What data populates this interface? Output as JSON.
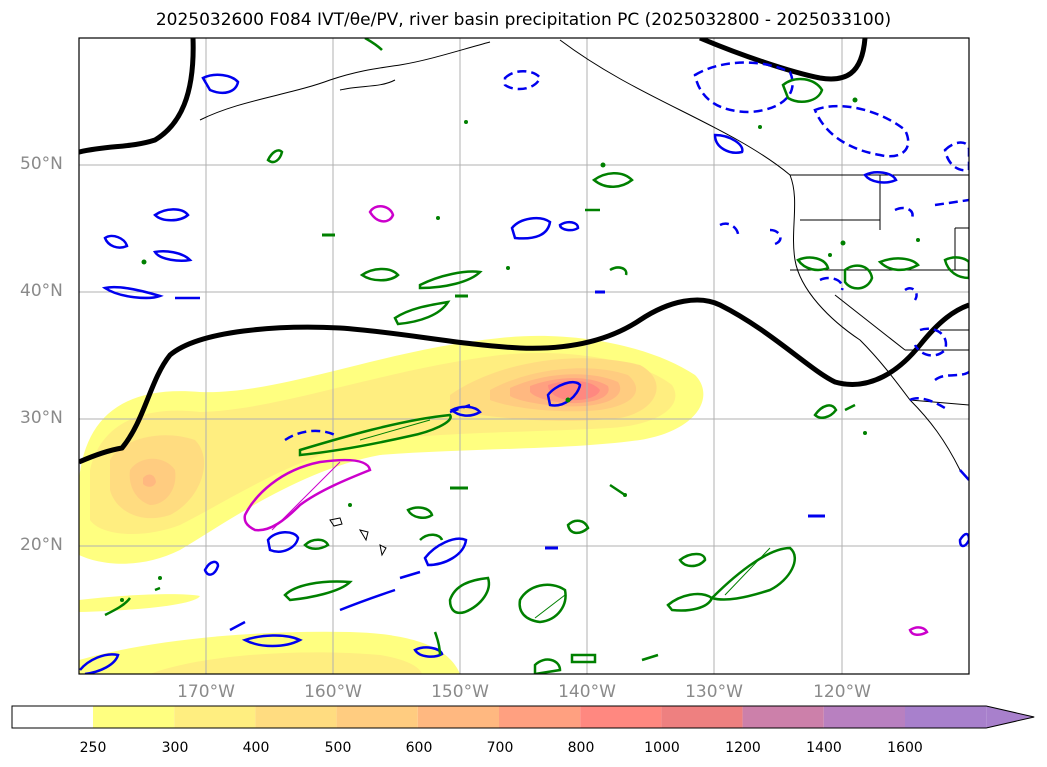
{
  "title": "2025032600 F084 IVT/θe/PV, river basin precipitation PC (2025032800 - 2025033100)",
  "map": {
    "lat_labels": [
      "50°N",
      "40°N",
      "30°N",
      "20°N"
    ],
    "lon_labels": [
      "170°W",
      "160°W",
      "150°W",
      "140°W",
      "130°W",
      "120°W"
    ]
  },
  "colorbar": {
    "levels": [
      "250",
      "300",
      "400",
      "500",
      "600",
      "700",
      "800",
      "1000",
      "1200",
      "1400",
      "1600"
    ],
    "colors": [
      "#ffffff",
      "#ffff80",
      "#ffee80",
      "#ffdc80",
      "#ffcc80",
      "#ffb880",
      "#ffa080",
      "#ff8880",
      "#ee8080",
      "#cc80aa",
      "#b880c0",
      "#a880cc"
    ]
  }
}
